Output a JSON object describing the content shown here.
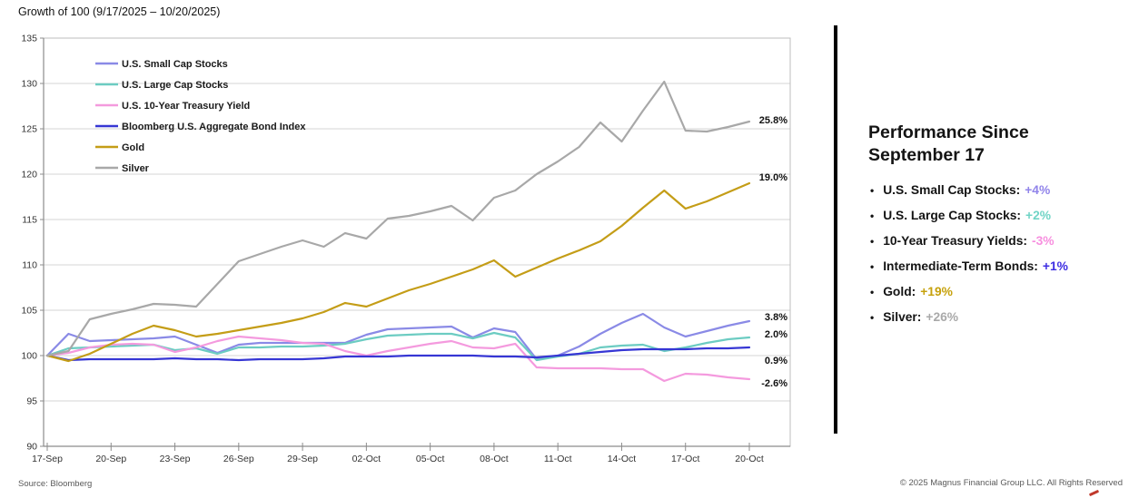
{
  "header": {
    "title": "Growth of 100 (9/17/2025 – 10/20/2025)"
  },
  "chart_data": {
    "type": "line",
    "title": "Growth of 100 (9/17/2025 – 10/20/2025)",
    "ylim": [
      90,
      135
    ],
    "ytick_step": 5,
    "y_ticks": [
      90,
      95,
      100,
      105,
      110,
      115,
      120,
      125,
      130,
      135
    ],
    "grid": "horizontal",
    "legend_position": "inside-top-left",
    "dates": [
      "17-Sep",
      "18-Sep",
      "19-Sep",
      "20-Sep",
      "21-Sep",
      "22-Sep",
      "23-Sep",
      "24-Sep",
      "25-Sep",
      "26-Sep",
      "27-Sep",
      "28-Sep",
      "29-Sep",
      "30-Sep",
      "01-Oct",
      "02-Oct",
      "03-Oct",
      "04-Oct",
      "05-Oct",
      "06-Oct",
      "07-Oct",
      "08-Oct",
      "09-Oct",
      "10-Oct",
      "11-Oct",
      "12-Oct",
      "13-Oct",
      "14-Oct",
      "15-Oct",
      "16-Oct",
      "17-Oct",
      "18-Oct",
      "19-Oct",
      "20-Oct"
    ],
    "x_tick_indices": [
      0,
      3,
      6,
      9,
      12,
      15,
      18,
      21,
      24,
      27,
      30,
      33
    ],
    "x_tick_labels": [
      "17-Sep",
      "20-Sep",
      "23-Sep",
      "26-Sep",
      "29-Sep",
      "02-Oct",
      "05-Oct",
      "08-Oct",
      "11-Oct",
      "14-Oct",
      "17-Oct",
      "20-Oct"
    ],
    "series": [
      {
        "name": "U.S. Small Cap Stocks",
        "color": "#8a8ae6",
        "end_label": "3.8%",
        "values": [
          100,
          102.4,
          101.6,
          101.7,
          101.8,
          101.9,
          102.1,
          101.2,
          100.3,
          101.2,
          101.4,
          101.4,
          101.4,
          101.4,
          101.4,
          102.3,
          102.9,
          103.0,
          103.1,
          103.2,
          102.0,
          103.0,
          102.6,
          99.6,
          100.0,
          101.0,
          102.4,
          103.6,
          104.6,
          103.1,
          102.1,
          102.7,
          103.3,
          103.8
        ]
      },
      {
        "name": "U.S. Large Cap Stocks",
        "color": "#6cccc2",
        "end_label": "2.0%",
        "values": [
          100,
          100.8,
          100.9,
          101.0,
          101.1,
          101.2,
          100.6,
          100.8,
          100.2,
          100.9,
          100.9,
          101.0,
          101.0,
          101.1,
          101.3,
          101.8,
          102.2,
          102.3,
          102.4,
          102.4,
          101.9,
          102.5,
          102.0,
          99.5,
          99.9,
          100.2,
          100.9,
          101.1,
          101.2,
          100.5,
          100.9,
          101.4,
          101.8,
          102.0
        ]
      },
      {
        "name": "U.S. 10-Year Treasury Yield",
        "color": "#f49ade",
        "end_label": "-2.6%",
        "values": [
          100,
          100.3,
          100.9,
          101.2,
          101.3,
          101.2,
          100.4,
          100.9,
          101.6,
          102.1,
          101.9,
          101.7,
          101.4,
          101.3,
          100.5,
          100.0,
          100.5,
          100.9,
          101.3,
          101.6,
          100.9,
          100.8,
          101.3,
          98.7,
          98.6,
          98.6,
          98.6,
          98.5,
          98.5,
          97.2,
          98.0,
          97.9,
          97.6,
          97.4
        ]
      },
      {
        "name": "Bloomberg U.S. Aggregate Bond Index",
        "color": "#3636d4",
        "end_label": "0.9%",
        "values": [
          100,
          99.5,
          99.6,
          99.6,
          99.6,
          99.6,
          99.7,
          99.6,
          99.6,
          99.5,
          99.6,
          99.6,
          99.6,
          99.7,
          99.9,
          99.9,
          99.9,
          100.0,
          100.0,
          100.0,
          100.0,
          99.9,
          99.9,
          99.8,
          100.0,
          100.2,
          100.4,
          100.6,
          100.7,
          100.7,
          100.7,
          100.8,
          100.8,
          100.9
        ]
      },
      {
        "name": "Gold",
        "color": "#c49d17",
        "end_label": "19.0%",
        "values": [
          100,
          99.4,
          100.2,
          101.3,
          102.4,
          103.3,
          102.8,
          102.1,
          102.4,
          102.8,
          103.2,
          103.6,
          104.1,
          104.8,
          105.8,
          105.4,
          106.3,
          107.2,
          107.9,
          108.7,
          109.5,
          110.5,
          108.7,
          109.7,
          110.7,
          111.6,
          112.6,
          114.3,
          116.3,
          118.2,
          116.2,
          117.0,
          118.0,
          119.0
        ]
      },
      {
        "name": "Silver",
        "color": "#a8a8a8",
        "end_label": "25.8%",
        "values": [
          100,
          100.5,
          104.0,
          104.6,
          105.1,
          105.7,
          105.6,
          105.4,
          107.9,
          110.4,
          111.2,
          112.0,
          112.7,
          112.0,
          113.5,
          112.9,
          115.1,
          115.4,
          115.9,
          116.5,
          114.9,
          117.4,
          118.2,
          120.0,
          121.4,
          123.0,
          125.7,
          123.6,
          127.0,
          130.2,
          124.8,
          124.7,
          125.2,
          125.8
        ]
      }
    ]
  },
  "panel": {
    "title_line1": "Performance Since",
    "title_line2": "September 17",
    "bullet_glyph": "•",
    "items": [
      {
        "label": "U.S. Small Cap Stocks:",
        "value": "+4%",
        "color": "#9184ea"
      },
      {
        "label": "U.S. Large Cap Stocks:",
        "value": "+2%",
        "color": "#70d4c6"
      },
      {
        "label": "10-Year Treasury Yields:",
        "value": "-3%",
        "color": "#f78fdf"
      },
      {
        "label": "Intermediate-Term Bonds:",
        "value": "+1%",
        "color": "#3d2de2"
      },
      {
        "label": "Gold:",
        "value": "+19%",
        "color": "#c6a10c"
      },
      {
        "label": "Silver:",
        "value": "+26%",
        "color": "#a9a9a9"
      }
    ]
  },
  "footer": {
    "source": "Source: Bloomberg",
    "copyright": "© 2025 Magnus Financial Group LLC. All Rights Reserved"
  },
  "colors": {
    "gridline": "#d4d4d4",
    "plot_border": "#bdbdbd",
    "axis": "#8c8c8c",
    "axis_text": "#333333",
    "divider": "#000000"
  }
}
